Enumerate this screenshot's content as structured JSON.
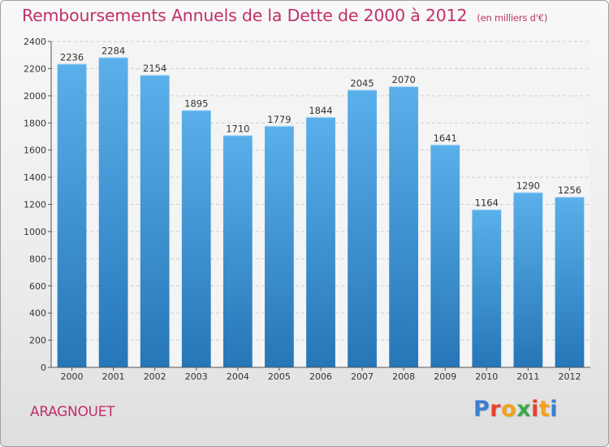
{
  "title": "Remboursements Annuels de la Dette de 2000 à 2012",
  "subtitle": "(en milliers d'€)",
  "commune": "ARAGNOUET",
  "logo": {
    "letters": [
      "P",
      "r",
      "o",
      "x",
      "i",
      "t",
      "i"
    ],
    "colors": [
      "#3a7fd0",
      "#e8412b",
      "#f2a21c",
      "#3aa84a",
      "#e8412b",
      "#f2a21c",
      "#3a7fd0"
    ]
  },
  "chart_data": {
    "type": "bar",
    "title": "Remboursements Annuels de la Dette de 2000 à 2012",
    "subtitle": "(en milliers d'€)",
    "xlabel": "",
    "ylabel": "",
    "categories": [
      "2000",
      "2001",
      "2002",
      "2003",
      "2004",
      "2005",
      "2006",
      "2007",
      "2008",
      "2009",
      "2010",
      "2011",
      "2012"
    ],
    "values": [
      2236,
      2284,
      2154,
      1895,
      1710,
      1779,
      1844,
      2045,
      2070,
      1641,
      1164,
      1290,
      1256
    ],
    "ylim": [
      0,
      2400
    ],
    "yticks": [
      0,
      200,
      400,
      600,
      800,
      1000,
      1200,
      1400,
      1600,
      1800,
      2000,
      2200,
      2400
    ],
    "grid": true,
    "bar_color_top": "#5ab0ea",
    "bar_color_bottom": "#2676b8"
  }
}
